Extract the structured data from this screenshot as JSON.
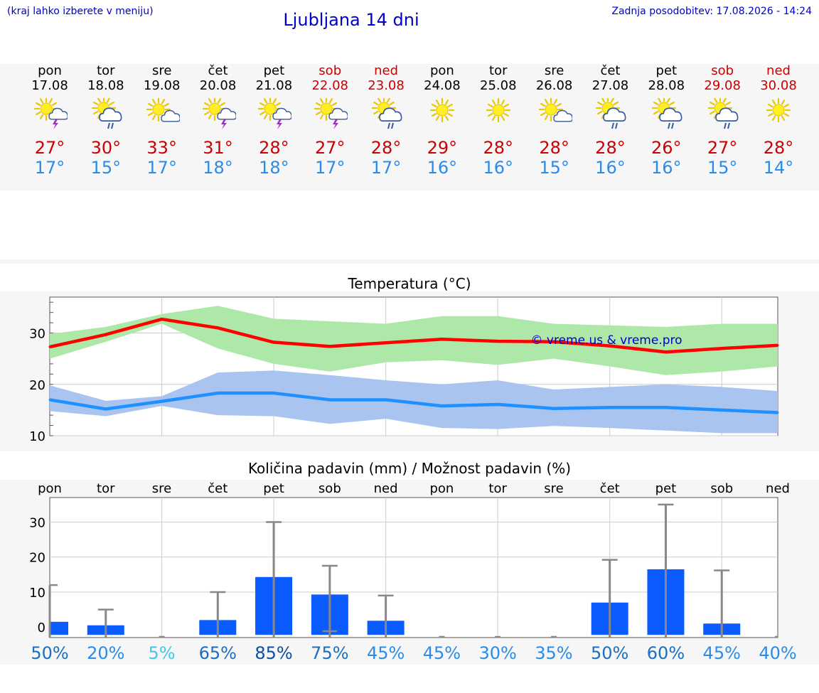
{
  "header": {
    "hint": "(kraj lahko izberete v meniju)",
    "title": "Ljubljana 14 dni",
    "updated": "Zadnja posodobitev: 17.08.2026 - 14:24"
  },
  "days": [
    {
      "name": "pon",
      "date": "17.08",
      "weekend": false,
      "icon": "sun-cloud-thunder-icon",
      "max": "27°",
      "min": "17°"
    },
    {
      "name": "tor",
      "date": "18.08",
      "weekend": false,
      "icon": "sun-cloud-rain-icon",
      "max": "30°",
      "min": "15°"
    },
    {
      "name": "sre",
      "date": "19.08",
      "weekend": false,
      "icon": "sun-small-cloud-icon",
      "max": "33°",
      "min": "17°"
    },
    {
      "name": "čet",
      "date": "20.08",
      "weekend": false,
      "icon": "sun-cloud-thunder-icon",
      "max": "31°",
      "min": "18°"
    },
    {
      "name": "pet",
      "date": "21.08",
      "weekend": false,
      "icon": "sun-cloud-thunder-icon",
      "max": "28°",
      "min": "18°"
    },
    {
      "name": "sob",
      "date": "22.08",
      "weekend": true,
      "icon": "sun-cloud-thunder-icon",
      "max": "27°",
      "min": "17°"
    },
    {
      "name": "ned",
      "date": "23.08",
      "weekend": true,
      "icon": "sun-cloud-rain-icon",
      "max": "28°",
      "min": "17°"
    },
    {
      "name": "pon",
      "date": "24.08",
      "weekend": false,
      "icon": "sun-icon",
      "max": "29°",
      "min": "16°"
    },
    {
      "name": "tor",
      "date": "25.08",
      "weekend": false,
      "icon": "sun-icon",
      "max": "28°",
      "min": "16°"
    },
    {
      "name": "sre",
      "date": "26.08",
      "weekend": false,
      "icon": "sun-small-cloud-icon",
      "max": "28°",
      "min": "15°"
    },
    {
      "name": "čet",
      "date": "27.08",
      "weekend": false,
      "icon": "sun-cloud-rain-icon",
      "max": "28°",
      "min": "16°"
    },
    {
      "name": "pet",
      "date": "28.08",
      "weekend": false,
      "icon": "sun-cloud-rain-icon",
      "max": "26°",
      "min": "16°"
    },
    {
      "name": "sob",
      "date": "29.08",
      "weekend": true,
      "icon": "sun-cloud-rain-icon",
      "max": "27°",
      "min": "15°"
    },
    {
      "name": "ned",
      "date": "30.08",
      "weekend": true,
      "icon": "sun-icon",
      "max": "28°",
      "min": "14°"
    }
  ],
  "colors": {
    "max_line": "#ff0000",
    "max_band": "#aee8a8",
    "min_line": "#1e90ff",
    "min_band": "#aac4f0",
    "bar": "#0a5cff",
    "weekend_text": "#cc0000",
    "max_text": "#cc0000",
    "min_text": "#2a8ce8",
    "link": "#0000cc"
  },
  "chart_data": [
    {
      "type": "line",
      "title": "Temperatura (°C)",
      "watermark": "© vreme.us & vreme.pro",
      "ylim": [
        10,
        37
      ],
      "yticks": [
        10,
        20,
        30
      ],
      "grid": true,
      "x": [
        "17.08",
        "18.08",
        "19.08",
        "20.08",
        "21.08",
        "22.08",
        "23.08",
        "24.08",
        "25.08",
        "26.08",
        "27.08",
        "28.08",
        "29.08",
        "30.08"
      ],
      "series": [
        {
          "role": "max",
          "values": [
            27.3,
            29.7,
            32.7,
            31.0,
            28.2,
            27.4,
            28.1,
            28.8,
            28.4,
            28.3,
            27.5,
            26.3,
            27.0,
            27.6
          ],
          "band_low": [
            25.0,
            28.3,
            31.8,
            27.0,
            24.0,
            22.5,
            24.3,
            24.7,
            23.8,
            25.0,
            23.5,
            21.8,
            22.5,
            23.5
          ],
          "band_high": [
            29.8,
            31.2,
            33.7,
            35.3,
            32.8,
            32.3,
            31.8,
            33.3,
            33.3,
            31.8,
            31.5,
            31.2,
            31.8,
            31.8
          ]
        },
        {
          "role": "min",
          "values": [
            17.0,
            15.2,
            16.7,
            18.3,
            18.3,
            17.0,
            17.0,
            15.8,
            16.1,
            15.3,
            15.5,
            15.5,
            15.0,
            14.5
          ],
          "band_low": [
            14.8,
            13.8,
            15.8,
            14.0,
            13.8,
            12.3,
            13.3,
            11.5,
            11.3,
            11.9,
            11.5,
            11.0,
            10.5,
            10.5
          ],
          "band_high": [
            19.8,
            16.8,
            17.7,
            22.3,
            22.7,
            21.8,
            20.8,
            20.0,
            20.8,
            19.0,
            19.5,
            20.0,
            19.5,
            18.7
          ]
        }
      ]
    },
    {
      "type": "bar",
      "title": "Količina padavin (mm) / Možnost padavin (%)",
      "categories": [
        "pon",
        "tor",
        "sre",
        "čet",
        "pet",
        "sob",
        "ned",
        "pon",
        "tor",
        "sre",
        "čet",
        "pet",
        "sob",
        "ned"
      ],
      "ylim": [
        -3,
        37
      ],
      "yticks": [
        0,
        10,
        20,
        30
      ],
      "values": [
        1.5,
        0.5,
        0,
        2.0,
        14.3,
        9.3,
        1.8,
        0,
        0,
        0,
        7.0,
        16.5,
        1.0,
        0
      ],
      "error_low": [
        0,
        0,
        0,
        0,
        0,
        0,
        0,
        0,
        0,
        0,
        0,
        0,
        0,
        0
      ],
      "error_high": [
        12,
        5,
        0,
        10,
        30,
        17.5,
        9,
        0,
        0,
        0,
        19.2,
        35,
        16.2,
        0
      ],
      "error_low_values": [
        0,
        0,
        0,
        0,
        0,
        0,
        0,
        0,
        0,
        0,
        0,
        0,
        0,
        0
      ],
      "probability_labels": [
        "50%",
        "20%",
        "5%",
        "65%",
        "85%",
        "75%",
        "45%",
        "45%",
        "30%",
        "35%",
        "50%",
        "60%",
        "45%",
        "40%"
      ],
      "probability_colors": [
        "#1a6fc0",
        "#2a8ce8",
        "#40c8e8",
        "#1a6fc0",
        "#0d4fa0",
        "#1a6fc0",
        "#2a8ce8",
        "#2a8ce8",
        "#2a8ce8",
        "#2a8ce8",
        "#1a6fc0",
        "#1a6fc0",
        "#2a8ce8",
        "#2a8ce8"
      ]
    }
  ]
}
